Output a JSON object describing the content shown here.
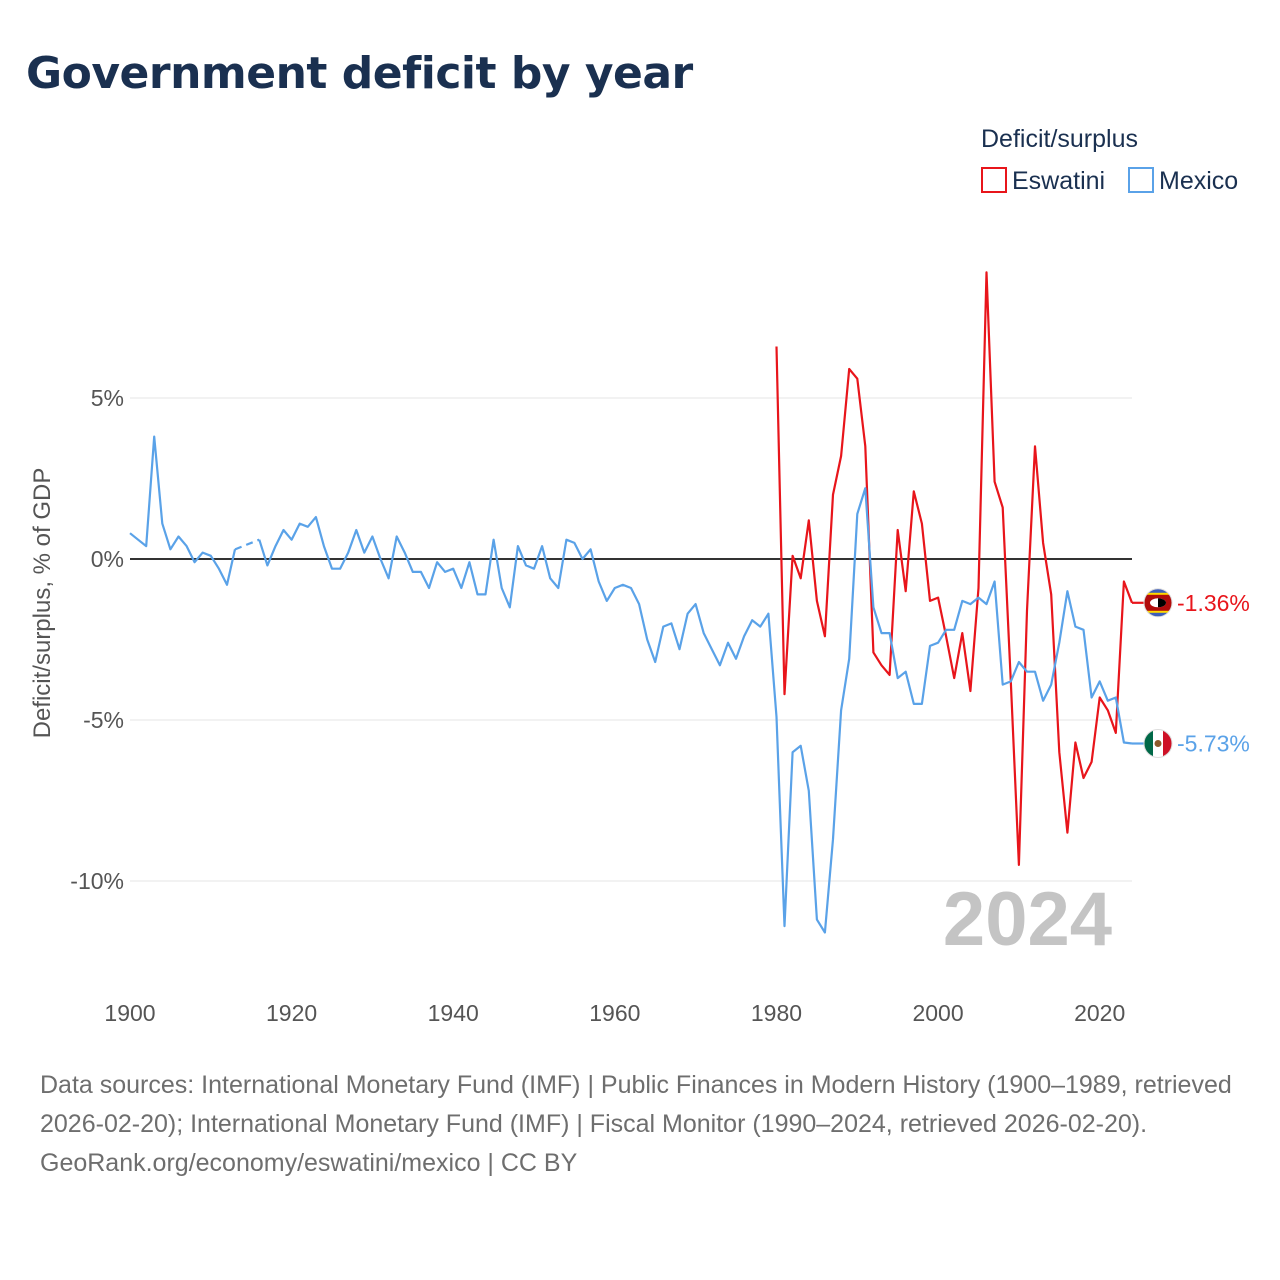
{
  "title": "Government deficit by year",
  "legend": {
    "title": "Deficit/surplus",
    "items": [
      {
        "name": "Eswatini",
        "color": "#e8151b"
      },
      {
        "name": "Mexico",
        "color": "#5aa2e8"
      }
    ]
  },
  "chart_data": {
    "type": "line",
    "title": "Government deficit by year",
    "xlabel": "",
    "ylabel": "Deficit/surplus, % of GDP",
    "xlim": [
      1900,
      2024
    ],
    "ylim": [
      -13,
      10.5
    ],
    "x_ticks": [
      1900,
      1920,
      1940,
      1960,
      1980,
      2000,
      2020
    ],
    "y_ticks": [
      {
        "value": 5,
        "label": "5%"
      },
      {
        "value": 0,
        "label": "0%"
      },
      {
        "value": -5,
        "label": "-5%"
      },
      {
        "value": -10,
        "label": "-10%"
      }
    ],
    "grid": true,
    "year_watermark": "2024",
    "series": [
      {
        "name": "Eswatini",
        "color": "#e8151b",
        "end_label": "-1.36%",
        "flag": "eswatini-flag",
        "points": [
          [
            1980,
            6.6
          ],
          [
            1981,
            -4.2
          ],
          [
            1982,
            0.1
          ],
          [
            1983,
            -0.6
          ],
          [
            1984,
            1.2
          ],
          [
            1985,
            -1.3
          ],
          [
            1986,
            -2.4
          ],
          [
            1987,
            2.0
          ],
          [
            1988,
            3.2
          ],
          [
            1989,
            5.9
          ],
          [
            1990,
            5.6
          ],
          [
            1991,
            3.5
          ],
          [
            1992,
            -2.9
          ],
          [
            1993,
            -3.3
          ],
          [
            1994,
            -3.6
          ],
          [
            1995,
            0.9
          ],
          [
            1996,
            -1.0
          ],
          [
            1997,
            2.1
          ],
          [
            1998,
            1.1
          ],
          [
            1999,
            -1.3
          ],
          [
            2000,
            -1.2
          ],
          [
            2001,
            -2.4
          ],
          [
            2002,
            -3.7
          ],
          [
            2003,
            -2.3
          ],
          [
            2004,
            -4.1
          ],
          [
            2005,
            -0.9
          ],
          [
            2006,
            8.9
          ],
          [
            2007,
            2.4
          ],
          [
            2008,
            1.6
          ],
          [
            2009,
            -3.8
          ],
          [
            2010,
            -9.5
          ],
          [
            2011,
            -1.6
          ],
          [
            2012,
            3.5
          ],
          [
            2013,
            0.5
          ],
          [
            2014,
            -1.1
          ],
          [
            2015,
            -6.0
          ],
          [
            2016,
            -8.5
          ],
          [
            2017,
            -5.7
          ],
          [
            2018,
            -6.8
          ],
          [
            2019,
            -6.3
          ],
          [
            2020,
            -4.3
          ],
          [
            2021,
            -4.7
          ],
          [
            2022,
            -5.4
          ],
          [
            2023,
            -0.7
          ],
          [
            2024,
            -1.36
          ]
        ]
      },
      {
        "name": "Mexico",
        "color": "#5aa2e8",
        "end_label": "-5.73%",
        "flag": "mexico-flag",
        "gaps": [
          [
            1912,
            1913
          ],
          [
            1913,
            1916
          ]
        ],
        "points": [
          [
            1900,
            0.8
          ],
          [
            1901,
            0.6
          ],
          [
            1902,
            0.4
          ],
          [
            1903,
            3.8
          ],
          [
            1904,
            1.1
          ],
          [
            1905,
            0.3
          ],
          [
            1906,
            0.7
          ],
          [
            1907,
            0.4
          ],
          [
            1908,
            -0.1
          ],
          [
            1909,
            0.2
          ],
          [
            1910,
            0.1
          ],
          [
            1911,
            -0.3
          ],
          [
            1912,
            -0.8
          ],
          [
            1913,
            0.3
          ],
          [
            1916,
            0.6
          ],
          [
            1917,
            -0.2
          ],
          [
            1918,
            0.4
          ],
          [
            1919,
            0.9
          ],
          [
            1920,
            0.6
          ],
          [
            1921,
            1.1
          ],
          [
            1922,
            1.0
          ],
          [
            1923,
            1.3
          ],
          [
            1924,
            0.4
          ],
          [
            1925,
            -0.3
          ],
          [
            1926,
            -0.3
          ],
          [
            1927,
            0.2
          ],
          [
            1928,
            0.9
          ],
          [
            1929,
            0.2
          ],
          [
            1930,
            0.7
          ],
          [
            1931,
            0.0
          ],
          [
            1932,
            -0.6
          ],
          [
            1933,
            0.7
          ],
          [
            1934,
            0.2
          ],
          [
            1935,
            -0.4
          ],
          [
            1936,
            -0.4
          ],
          [
            1937,
            -0.9
          ],
          [
            1938,
            -0.1
          ],
          [
            1939,
            -0.4
          ],
          [
            1940,
            -0.3
          ],
          [
            1941,
            -0.9
          ],
          [
            1942,
            -0.1
          ],
          [
            1943,
            -1.1
          ],
          [
            1944,
            -1.1
          ],
          [
            1945,
            0.6
          ],
          [
            1946,
            -0.9
          ],
          [
            1947,
            -1.5
          ],
          [
            1948,
            0.4
          ],
          [
            1949,
            -0.2
          ],
          [
            1950,
            -0.3
          ],
          [
            1951,
            0.4
          ],
          [
            1952,
            -0.6
          ],
          [
            1953,
            -0.9
          ],
          [
            1954,
            0.6
          ],
          [
            1955,
            0.5
          ],
          [
            1956,
            0.0
          ],
          [
            1957,
            0.3
          ],
          [
            1958,
            -0.7
          ],
          [
            1959,
            -1.3
          ],
          [
            1960,
            -0.9
          ],
          [
            1961,
            -0.8
          ],
          [
            1962,
            -0.9
          ],
          [
            1963,
            -1.4
          ],
          [
            1964,
            -2.5
          ],
          [
            1965,
            -3.2
          ],
          [
            1966,
            -2.1
          ],
          [
            1967,
            -2.0
          ],
          [
            1968,
            -2.8
          ],
          [
            1969,
            -1.7
          ],
          [
            1970,
            -1.4
          ],
          [
            1971,
            -2.3
          ],
          [
            1972,
            -2.8
          ],
          [
            1973,
            -3.3
          ],
          [
            1974,
            -2.6
          ],
          [
            1975,
            -3.1
          ],
          [
            1976,
            -2.4
          ],
          [
            1977,
            -1.9
          ],
          [
            1978,
            -2.1
          ],
          [
            1979,
            -1.7
          ],
          [
            1980,
            -4.9
          ],
          [
            1981,
            -11.4
          ],
          [
            1982,
            -6.0
          ],
          [
            1983,
            -5.8
          ],
          [
            1984,
            -7.2
          ],
          [
            1985,
            -11.2
          ],
          [
            1986,
            -11.6
          ],
          [
            1987,
            -8.7
          ],
          [
            1988,
            -4.7
          ],
          [
            1989,
            -3.1
          ],
          [
            1990,
            1.4
          ],
          [
            1991,
            2.2
          ],
          [
            1992,
            -1.5
          ],
          [
            1993,
            -2.3
          ],
          [
            1994,
            -2.3
          ],
          [
            1995,
            -3.7
          ],
          [
            1996,
            -3.5
          ],
          [
            1997,
            -4.5
          ],
          [
            1998,
            -4.5
          ],
          [
            1999,
            -2.7
          ],
          [
            2000,
            -2.6
          ],
          [
            2001,
            -2.2
          ],
          [
            2002,
            -2.2
          ],
          [
            2003,
            -1.3
          ],
          [
            2004,
            -1.4
          ],
          [
            2005,
            -1.2
          ],
          [
            2006,
            -1.4
          ],
          [
            2007,
            -0.7
          ],
          [
            2008,
            -3.9
          ],
          [
            2009,
            -3.8
          ],
          [
            2010,
            -3.2
          ],
          [
            2011,
            -3.5
          ],
          [
            2012,
            -3.5
          ],
          [
            2013,
            -4.4
          ],
          [
            2014,
            -3.9
          ],
          [
            2015,
            -2.6
          ],
          [
            2016,
            -1.0
          ],
          [
            2017,
            -2.1
          ],
          [
            2018,
            -2.2
          ],
          [
            2019,
            -4.3
          ],
          [
            2020,
            -3.8
          ],
          [
            2021,
            -4.4
          ],
          [
            2022,
            -4.3
          ],
          [
            2023,
            -5.7
          ],
          [
            2024,
            -5.73
          ]
        ]
      }
    ]
  },
  "footer": {
    "sources": "Data sources: International Monetary Fund (IMF) | Public Finances in Modern History (1900–1989, retrieved 2026-02-20); International Monetary Fund (IMF) | Fiscal Monitor (1990–2024, retrieved 2026-02-20).",
    "credit": "GeoRank.org/economy/eswatini/mexico | CC BY"
  }
}
